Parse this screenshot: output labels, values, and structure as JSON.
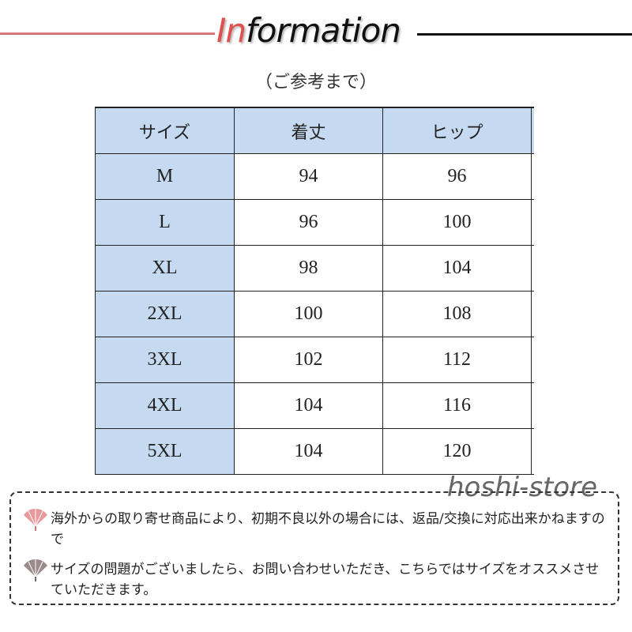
{
  "header": {
    "title_accent": "In",
    "title_rest": "formation",
    "subtitle": "（ご参考まで）"
  },
  "table": {
    "headers": [
      "サイズ",
      "着丈",
      "ヒップ"
    ],
    "rows": [
      [
        "M",
        "94",
        "96"
      ],
      [
        "L",
        "96",
        "100"
      ],
      [
        "XL",
        "98",
        "104"
      ],
      [
        "2XL",
        "100",
        "108"
      ],
      [
        "3XL",
        "102",
        "112"
      ],
      [
        "4XL",
        "104",
        "116"
      ],
      [
        "5XL",
        "104",
        "120"
      ]
    ]
  },
  "watermark": "hoshi-store",
  "notes": [
    {
      "icon": "fan-icon",
      "color": "#e89a9a",
      "text": "海外からの取り寄せ商品により、初期不良以外の場合には、返品/交換に対応出来かねますので"
    },
    {
      "icon": "fan-icon",
      "color": "#9a8a8a",
      "text": "サイズの問題がございましたら、お問い合わせいただき、こちらではサイズをオススメさせていただきます。"
    }
  ],
  "colors": {
    "header_fill": "#c5d9f0",
    "accent": "#e0504d"
  }
}
